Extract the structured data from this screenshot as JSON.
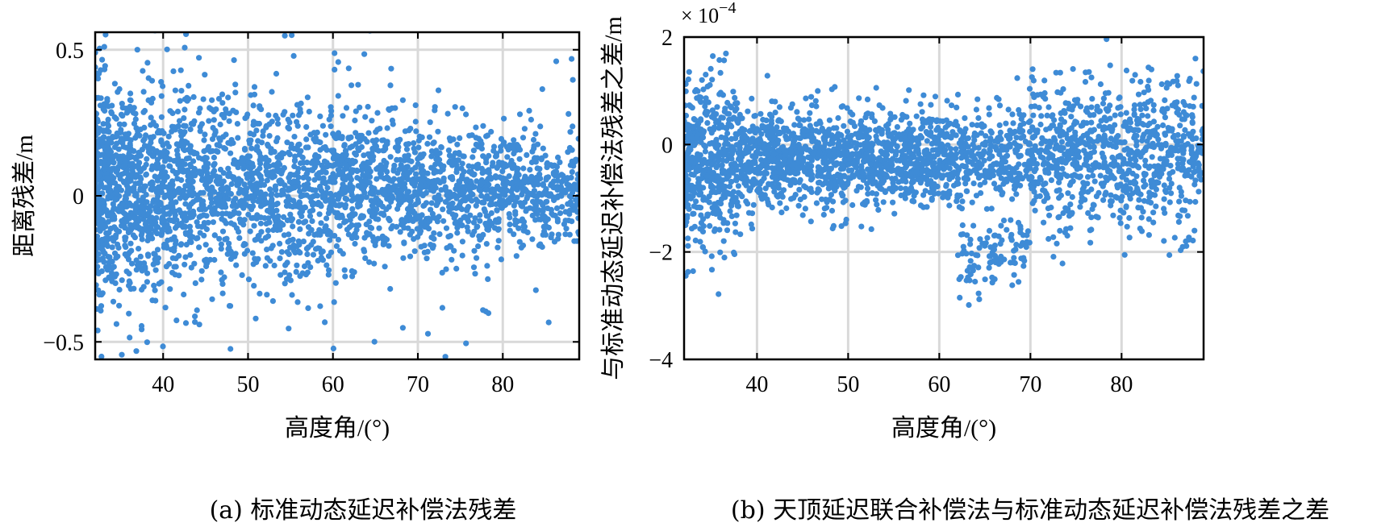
{
  "chart_data": [
    {
      "type": "scatter",
      "caption": "(a) 标准动态延迟补偿法残差",
      "xlabel": "高度角/(°)",
      "ylabel": "距离残差/m",
      "xlim": [
        32,
        89
      ],
      "ylim": [
        -0.56,
        0.56
      ],
      "xticks": [
        40,
        50,
        60,
        70,
        80
      ],
      "yticks": [
        -0.5,
        0,
        0.5
      ],
      "ytick_labels": [
        "−0.5",
        "0",
        "0.5"
      ],
      "grid": true,
      "color": "#3e8bd6",
      "point_count": 3200,
      "trend": {
        "center": 0.02,
        "spread_at_35deg": 0.17,
        "spread_at_85deg": 0.09
      }
    },
    {
      "type": "scatter",
      "caption": "(b) 天顶延迟联合补偿法与标准动态延迟补偿法残差之差",
      "xlabel": "高度角/(°)",
      "ylabel": "与标准动态延迟补偿法残差之差/m",
      "exponent_label": "× 10",
      "exponent": "−4",
      "xlim": [
        32,
        89
      ],
      "ylim": [
        -4,
        2
      ],
      "xticks": [
        40,
        50,
        60,
        70,
        80
      ],
      "yticks": [
        -4,
        -2,
        0,
        2
      ],
      "ytick_labels": [
        "−4",
        "−2",
        "0",
        "2"
      ],
      "grid": true,
      "color": "#3e8bd6",
      "point_count": 3000,
      "units_scale": 0.0001,
      "trend": {
        "center": -0.25,
        "spread": 0.45,
        "dip_near_67deg": -2.0
      }
    }
  ]
}
